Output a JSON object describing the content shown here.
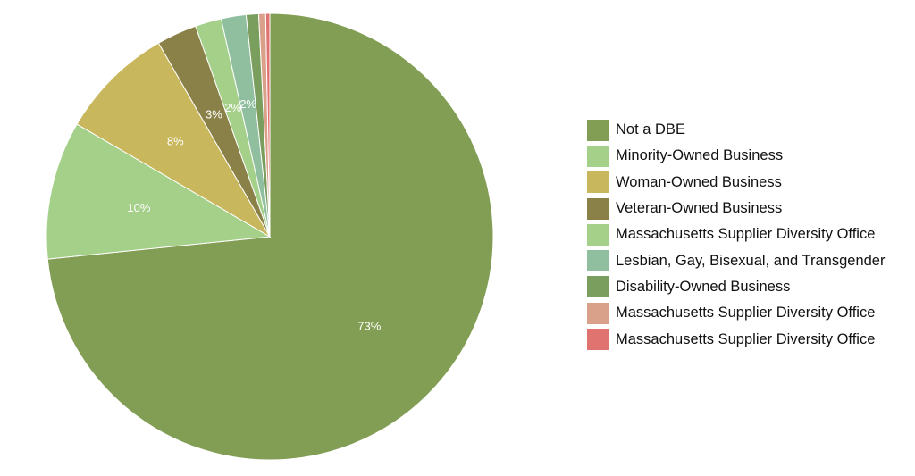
{
  "chart_data": {
    "type": "pie",
    "title": "",
    "series": [
      {
        "name": "Not a DBE",
        "value": 73.4,
        "label": "73%",
        "color": "#829e55"
      },
      {
        "name": "Minority-Owned Business",
        "value": 10.0,
        "label": "10%",
        "color": "#a4d08a"
      },
      {
        "name": "Woman-Owned Business",
        "value": 8.3,
        "label": "8%",
        "color": "#c8b75c"
      },
      {
        "name": "Veteran-Owned Business",
        "value": 2.9,
        "label": "3%",
        "color": "#8a8148"
      },
      {
        "name": "Massachusetts Supplier Diversity Office",
        "value": 1.9,
        "label": "2%",
        "color": "#a4d08a"
      },
      {
        "name": "Lesbian, Gay, Bisexual, and Transgender",
        "value": 1.8,
        "label": "2%",
        "color": "#8fbf9f"
      },
      {
        "name": "Disability-Owned Business",
        "value": 0.9,
        "label": "",
        "color": "#7a9e5e"
      },
      {
        "name": "Massachusetts Supplier Diversity Office",
        "value": 0.5,
        "label": "",
        "color": "#d9a08a"
      },
      {
        "name": "Massachusetts Supplier Diversity Office",
        "value": 0.3,
        "label": "",
        "color": "#e07370"
      }
    ],
    "legend_position": "right"
  }
}
